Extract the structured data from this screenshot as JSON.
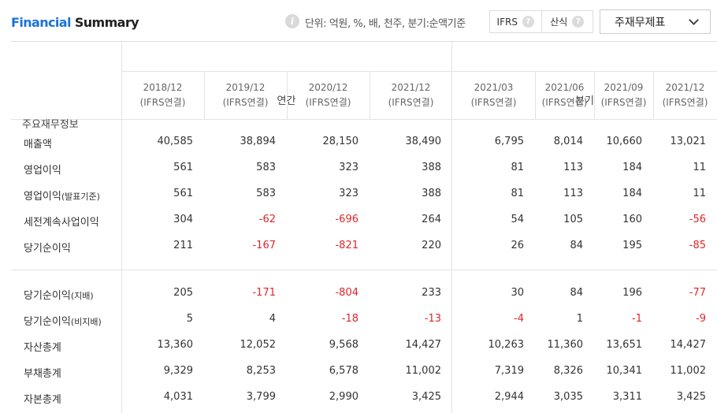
{
  "header": {
    "title_part1": "Financial",
    "title_part2": "Summary",
    "info_icon_glyph": "i",
    "unit_text": "단위: 억원, %, 배, 천주, 분기:순액기준",
    "toggle_ifrs": "IFRS",
    "toggle_formula": "산식",
    "help_glyph": "?",
    "select_value": "주재무제표"
  },
  "table": {
    "corner_label": "주요재무정보",
    "group_annual": "연간",
    "group_quarterly": "분기",
    "columns": [
      {
        "period": "2018/12",
        "basis": "(IFRS연결)"
      },
      {
        "period": "2019/12",
        "basis": "(IFRS연결)"
      },
      {
        "period": "2020/12",
        "basis": "(IFRS연결)"
      },
      {
        "period": "2021/12",
        "basis": "(IFRS연결)"
      },
      {
        "period": "2021/03",
        "basis": "(IFRS연결)"
      },
      {
        "period": "2021/06",
        "basis": "(IFRS연결)"
      },
      {
        "period": "2021/09",
        "basis": "(IFRS연결)"
      },
      {
        "period": "2021/12",
        "basis": "(IFRS연결)"
      }
    ],
    "rows": [
      {
        "label": "매출액",
        "sub": "",
        "values": [
          "40,585",
          "38,894",
          "28,150",
          "38,490",
          "6,795",
          "8,014",
          "10,660",
          "13,021"
        ]
      },
      {
        "label": "영업이익",
        "sub": "",
        "values": [
          "561",
          "583",
          "323",
          "388",
          "81",
          "113",
          "184",
          "11"
        ]
      },
      {
        "label": "영업이익",
        "sub": "(발표기준)",
        "values": [
          "561",
          "583",
          "323",
          "388",
          "81",
          "113",
          "184",
          "11"
        ]
      },
      {
        "label": "세전계속사업이익",
        "sub": "",
        "values": [
          "304",
          "-62",
          "-696",
          "264",
          "54",
          "105",
          "160",
          "-56"
        ]
      },
      {
        "label": "당기순이익",
        "sub": "",
        "values": [
          "211",
          "-167",
          "-821",
          "220",
          "26",
          "84",
          "195",
          "-85"
        ]
      },
      {
        "label": "당기순이익",
        "sub": "(지배)",
        "values": [
          "205",
          "-171",
          "-804",
          "233",
          "30",
          "84",
          "196",
          "-77"
        ]
      },
      {
        "label": "당기순이익",
        "sub": "(비지배)",
        "values": [
          "5",
          "4",
          "-18",
          "-13",
          "-4",
          "1",
          "-1",
          "-9"
        ]
      },
      {
        "label": "자산총계",
        "sub": "",
        "values": [
          "13,360",
          "12,052",
          "9,568",
          "14,427",
          "10,263",
          "11,360",
          "13,651",
          "14,427"
        ]
      },
      {
        "label": "부채총계",
        "sub": "",
        "values": [
          "9,329",
          "8,253",
          "6,578",
          "11,002",
          "7,319",
          "8,326",
          "10,341",
          "11,002"
        ]
      },
      {
        "label": "자본총계",
        "sub": "",
        "values": [
          "4,031",
          "3,799",
          "2,990",
          "3,425",
          "2,944",
          "3,035",
          "3,311",
          "3,425"
        ]
      }
    ]
  },
  "colors": {
    "title_accent": "#1a73d9",
    "negative": "#e0262a",
    "border": "#e3e3e3"
  }
}
